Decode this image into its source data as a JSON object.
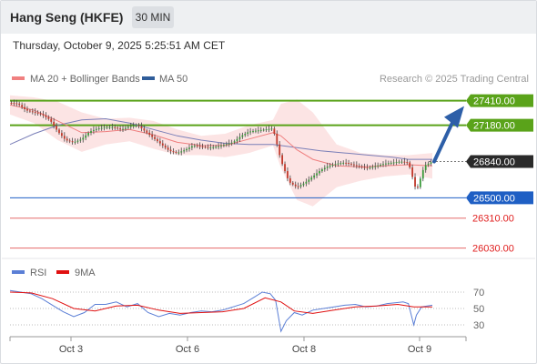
{
  "header": {
    "title": "Hang Seng (HKFE)",
    "timeframe": "30 MIN",
    "timestamp": "Thursday, October 9, 2025 5:25:51 AM CET"
  },
  "legend": {
    "ma20": {
      "label": "MA 20 + Bollinger Bands",
      "color": "#f08080"
    },
    "ma50": {
      "label": "MA 50",
      "color": "#2f5d9a"
    },
    "credit": "Research © 2025 Trading Central"
  },
  "rsi_legend": {
    "rsi": {
      "label": "RSI",
      "color": "#5b7fd6"
    },
    "ma9": {
      "label": "9MA",
      "color": "#e01010"
    }
  },
  "chart_data": [
    {
      "type": "candlestick",
      "title": "Hang Seng (HKFE)",
      "x_ticks": [
        "Oct 3",
        "Oct 6",
        "Oct 8",
        "Oct 9"
      ],
      "ylim": [
        25950,
        27500
      ],
      "last_price": 26840,
      "levels": [
        {
          "value": 27410,
          "label": "27410.00",
          "kind": "resistance",
          "color": "#5aa31a"
        },
        {
          "value": 27180,
          "label": "27180.00",
          "kind": "resistance",
          "color": "#5aa31a"
        },
        {
          "value": 26500,
          "label": "26500.00",
          "kind": "pivot",
          "color": "#1f5fc4"
        },
        {
          "value": 26310,
          "label": "26310.00",
          "kind": "support",
          "color": "#e56a6a"
        },
        {
          "value": 26030,
          "label": "26030.00",
          "kind": "support",
          "color": "#e56a6a"
        }
      ],
      "current_label": "26840.00",
      "forecast_target": 27410,
      "close_path": [
        [
          0,
          27390
        ],
        [
          6,
          27380
        ],
        [
          12,
          27320
        ],
        [
          18,
          27300
        ],
        [
          24,
          27280
        ],
        [
          30,
          27230
        ],
        [
          36,
          27120
        ],
        [
          42,
          27040
        ],
        [
          48,
          27020
        ],
        [
          54,
          27050
        ],
        [
          60,
          27120
        ],
        [
          66,
          27150
        ],
        [
          72,
          27160
        ],
        [
          78,
          27160
        ],
        [
          84,
          27140
        ],
        [
          90,
          27170
        ],
        [
          96,
          27180
        ],
        [
          102,
          27120
        ],
        [
          108,
          27060
        ],
        [
          114,
          27000
        ],
        [
          120,
          26940
        ],
        [
          126,
          26920
        ],
        [
          132,
          26950
        ],
        [
          138,
          26990
        ],
        [
          144,
          26980
        ],
        [
          150,
          26970
        ],
        [
          156,
          26980
        ],
        [
          162,
          27000
        ],
        [
          168,
          27020
        ],
        [
          174,
          27080
        ],
        [
          180,
          27120
        ],
        [
          186,
          27130
        ],
        [
          192,
          27140
        ],
        [
          198,
          27150
        ],
        [
          204,
          26850
        ],
        [
          210,
          26650
        ],
        [
          216,
          26600
        ],
        [
          222,
          26640
        ],
        [
          228,
          26700
        ],
        [
          234,
          26760
        ],
        [
          240,
          26800
        ],
        [
          246,
          26820
        ],
        [
          252,
          26830
        ],
        [
          258,
          26810
        ],
        [
          264,
          26790
        ],
        [
          270,
          26780
        ],
        [
          276,
          26800
        ],
        [
          282,
          26820
        ],
        [
          288,
          26830
        ],
        [
          294,
          26840
        ],
        [
          300,
          26830
        ],
        [
          306,
          26560
        ],
        [
          312,
          26800
        ],
        [
          318,
          26840
        ]
      ],
      "ma20": [
        [
          0,
          27370
        ],
        [
          18,
          27320
        ],
        [
          36,
          27220
        ],
        [
          54,
          27110
        ],
        [
          72,
          27120
        ],
        [
          90,
          27140
        ],
        [
          108,
          27090
        ],
        [
          126,
          27020
        ],
        [
          144,
          26990
        ],
        [
          162,
          26990
        ],
        [
          180,
          27050
        ],
        [
          198,
          27110
        ],
        [
          204,
          27080
        ],
        [
          216,
          26950
        ],
        [
          228,
          26860
        ],
        [
          246,
          26800
        ],
        [
          264,
          26790
        ],
        [
          282,
          26800
        ],
        [
          300,
          26810
        ],
        [
          318,
          26800
        ]
      ],
      "ma50": [
        [
          0,
          27000
        ],
        [
          18,
          27100
        ],
        [
          36,
          27180
        ],
        [
          54,
          27230
        ],
        [
          72,
          27240
        ],
        [
          90,
          27200
        ],
        [
          108,
          27140
        ],
        [
          126,
          27080
        ],
        [
          144,
          27040
        ],
        [
          162,
          27010
        ],
        [
          180,
          27000
        ],
        [
          198,
          27000
        ],
        [
          216,
          26970
        ],
        [
          234,
          26940
        ],
        [
          252,
          26920
        ],
        [
          270,
          26900
        ],
        [
          288,
          26880
        ],
        [
          300,
          26860
        ],
        [
          318,
          26860
        ]
      ],
      "bollinger_upper": [
        [
          0,
          27460
        ],
        [
          18,
          27440
        ],
        [
          36,
          27400
        ],
        [
          54,
          27300
        ],
        [
          72,
          27240
        ],
        [
          90,
          27250
        ],
        [
          108,
          27220
        ],
        [
          126,
          27140
        ],
        [
          144,
          27080
        ],
        [
          162,
          27100
        ],
        [
          180,
          27180
        ],
        [
          198,
          27230
        ],
        [
          204,
          27380
        ],
        [
          216,
          27420
        ],
        [
          228,
          27300
        ],
        [
          246,
          27000
        ],
        [
          264,
          26920
        ],
        [
          282,
          26900
        ],
        [
          300,
          26900
        ],
        [
          318,
          26920
        ]
      ],
      "bollinger_lower": [
        [
          0,
          27280
        ],
        [
          18,
          27200
        ],
        [
          36,
          27040
        ],
        [
          54,
          26930
        ],
        [
          72,
          27000
        ],
        [
          90,
          27030
        ],
        [
          108,
          26960
        ],
        [
          126,
          26900
        ],
        [
          144,
          26900
        ],
        [
          162,
          26880
        ],
        [
          180,
          26920
        ],
        [
          198,
          26990
        ],
        [
          204,
          26780
        ],
        [
          216,
          26480
        ],
        [
          228,
          26420
        ],
        [
          246,
          26600
        ],
        [
          264,
          26660
        ],
        [
          282,
          26700
        ],
        [
          300,
          26720
        ],
        [
          318,
          26680
        ]
      ]
    },
    {
      "type": "line",
      "title": "RSI",
      "ylim": [
        20,
        80
      ],
      "y_ticks": [
        70,
        50,
        30
      ],
      "series": [
        {
          "name": "RSI",
          "color": "#5b7fd6",
          "points": [
            [
              0,
              72
            ],
            [
              8,
              70
            ],
            [
              16,
              68
            ],
            [
              24,
              62
            ],
            [
              32,
              54
            ],
            [
              40,
              46
            ],
            [
              48,
              40
            ],
            [
              56,
              45
            ],
            [
              64,
              55
            ],
            [
              72,
              55
            ],
            [
              80,
              58
            ],
            [
              88,
              52
            ],
            [
              96,
              56
            ],
            [
              104,
              45
            ],
            [
              112,
              40
            ],
            [
              120,
              44
            ],
            [
              128,
              42
            ],
            [
              136,
              45
            ],
            [
              144,
              47
            ],
            [
              152,
              46
            ],
            [
              160,
              48
            ],
            [
              168,
              52
            ],
            [
              176,
              56
            ],
            [
              184,
              64
            ],
            [
              190,
              70
            ],
            [
              196,
              68
            ],
            [
              200,
              60
            ],
            [
              204,
              22
            ],
            [
              208,
              35
            ],
            [
              214,
              45
            ],
            [
              220,
              42
            ],
            [
              228,
              48
            ],
            [
              236,
              50
            ],
            [
              244,
              52
            ],
            [
              252,
              54
            ],
            [
              260,
              55
            ],
            [
              268,
              52
            ],
            [
              276,
              53
            ],
            [
              284,
              56
            ],
            [
              290,
              57
            ],
            [
              296,
              58
            ],
            [
              300,
              56
            ],
            [
              304,
              30
            ],
            [
              306,
              42
            ],
            [
              310,
              52
            ],
            [
              318,
              54
            ]
          ]
        },
        {
          "name": "9MA",
          "color": "#e01010",
          "points": [
            [
              0,
              70
            ],
            [
              16,
              69
            ],
            [
              32,
              62
            ],
            [
              48,
              50
            ],
            [
              64,
              47
            ],
            [
              80,
              53
            ],
            [
              96,
              54
            ],
            [
              112,
              48
            ],
            [
              128,
              44
            ],
            [
              144,
              45
            ],
            [
              160,
              46
            ],
            [
              176,
              50
            ],
            [
              192,
              63
            ],
            [
              204,
              58
            ],
            [
              214,
              47
            ],
            [
              228,
              44
            ],
            [
              244,
              48
            ],
            [
              260,
              52
            ],
            [
              276,
              53
            ],
            [
              292,
              55
            ],
            [
              304,
              52
            ],
            [
              318,
              52
            ]
          ]
        }
      ]
    }
  ]
}
